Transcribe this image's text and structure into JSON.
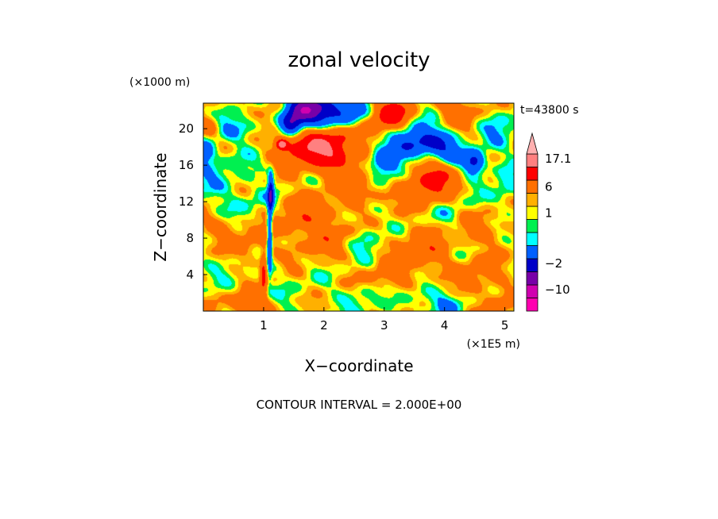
{
  "chart_data": {
    "type": "heatmap",
    "title": "zonal velocity",
    "xlabel": "X−coordinate",
    "ylabel": "Z−coordinate",
    "x_unit": "(×1E5 m)",
    "y_unit": "(×1000 m)",
    "time_label": "t=43800 s",
    "contour_note": "CONTOUR INTERVAL = 2.000E+00",
    "xlim": [
      0,
      5.15
    ],
    "ylim": [
      0,
      22.8
    ],
    "x_ticks": [
      1,
      2,
      3,
      4,
      5
    ],
    "y_ticks": [
      4,
      8,
      12,
      16,
      20
    ],
    "colorbar": {
      "levels": [
        -18,
        -14,
        -10,
        -6,
        -2,
        -1,
        0,
        1,
        2,
        6,
        10,
        14,
        17.1
      ],
      "colors": [
        "#ff00b0",
        "#d000b0",
        "#7800a8",
        "#0000c8",
        "#0060ff",
        "#00ffff",
        "#00f050",
        "#ffff00",
        "#ffb000",
        "#ff7000",
        "#ff0000",
        "#ff8080",
        "#ffb0b0"
      ],
      "tick_labels": [
        {
          "value": -10,
          "label": "−10"
        },
        {
          "value": -2,
          "label": "−2"
        },
        {
          "value": 1,
          "label": "1"
        },
        {
          "value": 6,
          "label": "6"
        },
        {
          "value": 17.1,
          "label": "17.1"
        }
      ]
    },
    "features": [
      {
        "x": 1.15,
        "z": 22.2,
        "sigma_x": 0.22,
        "sigma_z": 1.0,
        "value": 3
      },
      {
        "x": 1.45,
        "z": 20.5,
        "sigma_x": 0.12,
        "sigma_z": 0.8,
        "value": -8
      },
      {
        "x": 1.65,
        "z": 22.0,
        "sigma_x": 0.22,
        "sigma_z": 1.2,
        "value": -13
      },
      {
        "x": 2.1,
        "z": 22.0,
        "sigma_x": 0.35,
        "sigma_z": 1.2,
        "value": -6
      },
      {
        "x": 2.5,
        "z": 21.5,
        "sigma_x": 0.2,
        "sigma_z": 1.0,
        "value": -3
      },
      {
        "x": 1.7,
        "z": 18.0,
        "sigma_x": 0.32,
        "sigma_z": 1.6,
        "value": 8
      },
      {
        "x": 1.3,
        "z": 18.3,
        "sigma_x": 0.07,
        "sigma_z": 0.4,
        "value": 11
      },
      {
        "x": 2.2,
        "z": 17.5,
        "sigma_x": 0.25,
        "sigma_z": 2.0,
        "value": 6
      },
      {
        "x": 2.6,
        "z": 16.5,
        "sigma_x": 0.22,
        "sigma_z": 1.8,
        "value": 2.5
      },
      {
        "x": 3.1,
        "z": 21.3,
        "sigma_x": 0.25,
        "sigma_z": 1.5,
        "value": 8
      },
      {
        "x": 3.5,
        "z": 18.5,
        "sigma_x": 0.28,
        "sigma_z": 1.4,
        "value": -8
      },
      {
        "x": 3.0,
        "z": 16.2,
        "sigma_x": 0.18,
        "sigma_z": 1.2,
        "value": -7
      },
      {
        "x": 3.9,
        "z": 18.3,
        "sigma_x": 0.2,
        "sigma_z": 1.0,
        "value": -5
      },
      {
        "x": 4.15,
        "z": 17.0,
        "sigma_x": 0.18,
        "sigma_z": 1.0,
        "value": -2.5
      },
      {
        "x": 3.75,
        "z": 14.5,
        "sigma_x": 0.3,
        "sigma_z": 1.8,
        "value": 7
      },
      {
        "x": 4.5,
        "z": 16.3,
        "sigma_x": 0.12,
        "sigma_z": 0.8,
        "value": -9
      },
      {
        "x": 4.2,
        "z": 22.0,
        "sigma_x": 0.25,
        "sigma_z": 1.2,
        "value": 4
      },
      {
        "x": 4.9,
        "z": 20.2,
        "sigma_x": 0.18,
        "sigma_z": 1.6,
        "value": -2
      },
      {
        "x": 0.6,
        "z": 20.0,
        "sigma_x": 0.25,
        "sigma_z": 1.0,
        "value": -2.5
      },
      {
        "x": 0.1,
        "z": 20.3,
        "sigma_x": 0.12,
        "sigma_z": 0.8,
        "value": 4
      },
      {
        "x": 0.05,
        "z": 17.5,
        "sigma_x": 0.12,
        "sigma_z": 0.8,
        "value": -6
      },
      {
        "x": 0.2,
        "z": 15.0,
        "sigma_x": 0.3,
        "sigma_z": 1.4,
        "value": -1.5
      },
      {
        "x": 0.7,
        "z": 12.0,
        "sigma_x": 0.45,
        "sigma_z": 1.2,
        "value": -1.5
      },
      {
        "x": 0.3,
        "z": 9.0,
        "sigma_x": 0.3,
        "sigma_z": 1.2,
        "value": 2.5
      },
      {
        "x": 0.8,
        "z": 7.0,
        "sigma_x": 0.25,
        "sigma_z": 1.2,
        "value": 2.5
      },
      {
        "x": 1.12,
        "z": 13.0,
        "sigma_x": 0.035,
        "sigma_z": 1.5,
        "value": -9
      },
      {
        "x": 1.1,
        "z": 8.0,
        "sigma_x": 0.03,
        "sigma_z": 2.5,
        "value": -8
      },
      {
        "x": 1.0,
        "z": 4.0,
        "sigma_x": 0.04,
        "sigma_z": 1.5,
        "value": 7
      },
      {
        "x": 0.75,
        "z": 0.8,
        "sigma_x": 0.2,
        "sigma_z": 0.8,
        "value": 7
      },
      {
        "x": 1.5,
        "z": 10.5,
        "sigma_x": 0.35,
        "sigma_z": 2.0,
        "value": 2.5
      },
      {
        "x": 2.0,
        "z": 9.0,
        "sigma_x": 0.4,
        "sigma_z": 2.5,
        "value": 3
      },
      {
        "x": 2.8,
        "z": 12.8,
        "sigma_x": 0.35,
        "sigma_z": 1.0,
        "value": 2.5
      },
      {
        "x": 2.7,
        "z": 8.0,
        "sigma_x": 0.18,
        "sigma_z": 1.5,
        "value": -2
      },
      {
        "x": 2.6,
        "z": 1.5,
        "sigma_x": 0.2,
        "sigma_z": 1.0,
        "value": -1.5
      },
      {
        "x": 3.1,
        "z": 3.5,
        "sigma_x": 0.3,
        "sigma_z": 1.2,
        "value": 3
      },
      {
        "x": 3.6,
        "z": 6.5,
        "sigma_x": 0.35,
        "sigma_z": 1.8,
        "value": 4
      },
      {
        "x": 3.5,
        "z": 2.0,
        "sigma_x": 0.25,
        "sigma_z": 1.0,
        "value": -2
      },
      {
        "x": 4.0,
        "z": 0.8,
        "sigma_x": 0.25,
        "sigma_z": 0.8,
        "value": -2
      },
      {
        "x": 4.1,
        "z": 10.5,
        "sigma_x": 0.18,
        "sigma_z": 1.2,
        "value": -1.5
      },
      {
        "x": 4.7,
        "z": 9.0,
        "sigma_x": 0.4,
        "sigma_z": 1.5,
        "value": 2.5
      },
      {
        "x": 4.6,
        "z": 4.0,
        "sigma_x": 0.3,
        "sigma_z": 1.5,
        "value": 3
      },
      {
        "x": 5.0,
        "z": 13.0,
        "sigma_x": 0.15,
        "sigma_z": 2.0,
        "value": -2
      },
      {
        "x": 4.9,
        "z": 1.0,
        "sigma_x": 0.3,
        "sigma_z": 1.0,
        "value": 2.5
      }
    ]
  }
}
